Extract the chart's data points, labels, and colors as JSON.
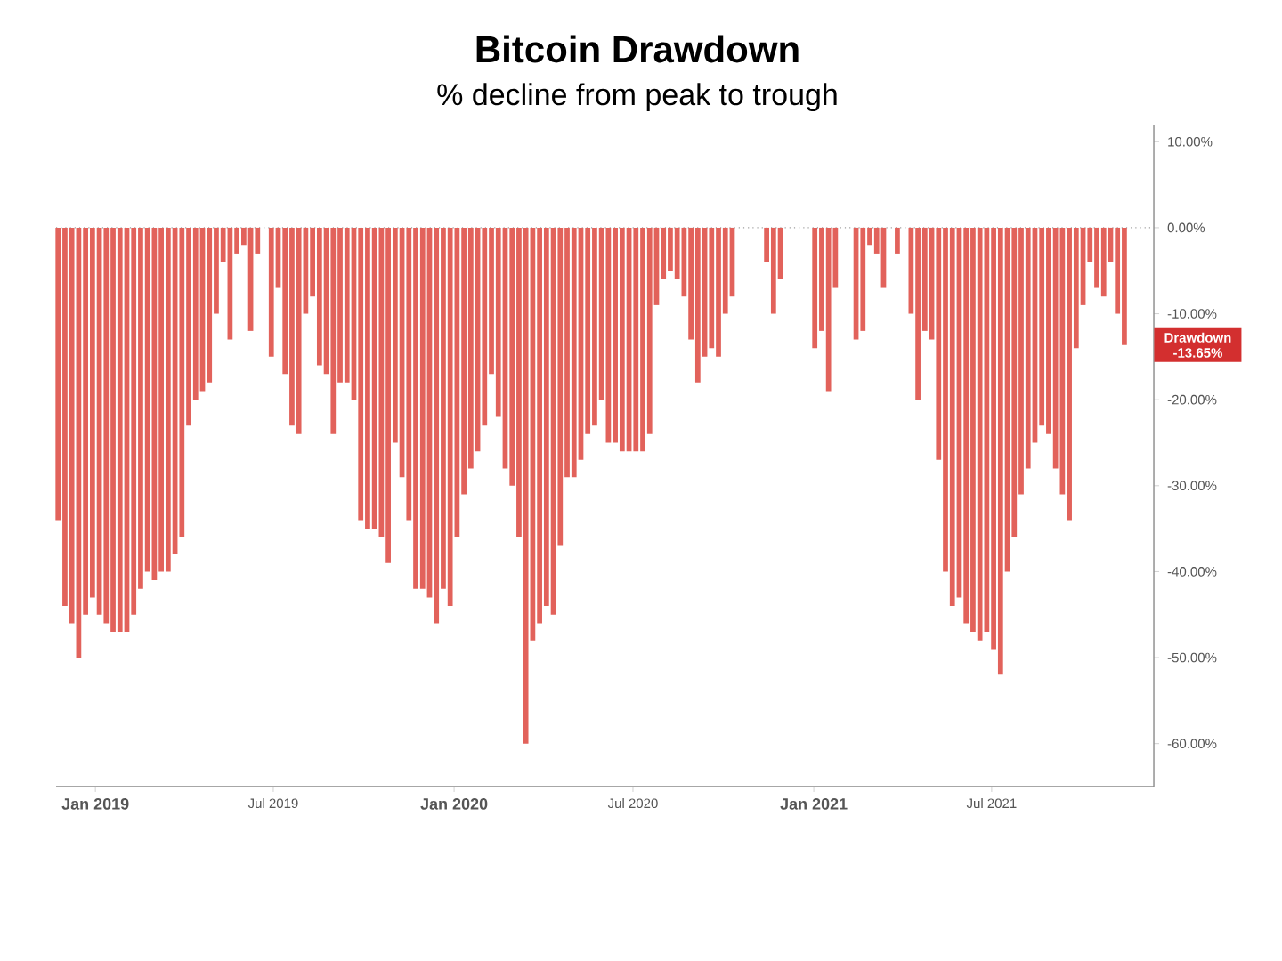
{
  "chart_data": {
    "type": "bar",
    "title": "Bitcoin Drawdown",
    "subtitle": "% decline from peak to trough",
    "x": [
      "2018-11-24",
      "2018-12-01",
      "2018-12-08",
      "2018-12-15",
      "2018-12-22",
      "2018-12-29",
      "2019-01-05",
      "2019-01-12",
      "2019-01-19",
      "2019-01-26",
      "2019-02-02",
      "2019-02-09",
      "2019-02-16",
      "2019-02-23",
      "2019-03-02",
      "2019-03-09",
      "2019-03-16",
      "2019-03-23",
      "2019-03-30",
      "2019-04-06",
      "2019-04-13",
      "2019-04-20",
      "2019-04-27",
      "2019-05-04",
      "2019-05-11",
      "2019-05-18",
      "2019-05-25",
      "2019-06-01",
      "2019-06-08",
      "2019-06-15",
      "2019-06-22",
      "2019-06-29",
      "2019-07-06",
      "2019-07-13",
      "2019-07-20",
      "2019-07-27",
      "2019-08-03",
      "2019-08-10",
      "2019-08-17",
      "2019-08-24",
      "2019-08-31",
      "2019-09-07",
      "2019-09-14",
      "2019-09-21",
      "2019-09-28",
      "2019-10-05",
      "2019-10-12",
      "2019-10-19",
      "2019-10-26",
      "2019-11-02",
      "2019-11-09",
      "2019-11-16",
      "2019-11-23",
      "2019-11-30",
      "2019-12-07",
      "2019-12-14",
      "2019-12-21",
      "2019-12-28",
      "2020-01-04",
      "2020-01-11",
      "2020-01-18",
      "2020-01-25",
      "2020-02-01",
      "2020-02-08",
      "2020-02-15",
      "2020-02-22",
      "2020-02-29",
      "2020-03-07",
      "2020-03-14",
      "2020-03-21",
      "2020-03-28",
      "2020-04-04",
      "2020-04-11",
      "2020-04-18",
      "2020-04-25",
      "2020-05-02",
      "2020-05-09",
      "2020-05-16",
      "2020-05-23",
      "2020-05-30",
      "2020-06-06",
      "2020-06-13",
      "2020-06-20",
      "2020-06-27",
      "2020-07-04",
      "2020-07-11",
      "2020-07-18",
      "2020-07-25",
      "2020-08-01",
      "2020-08-08",
      "2020-08-15",
      "2020-08-22",
      "2020-08-29",
      "2020-09-05",
      "2020-09-12",
      "2020-09-19",
      "2020-09-26",
      "2020-10-03",
      "2020-10-10",
      "2020-10-17",
      "2020-10-24",
      "2020-10-31",
      "2020-11-07",
      "2020-11-14",
      "2020-11-21",
      "2020-11-28",
      "2020-12-05",
      "2020-12-12",
      "2020-12-19",
      "2020-12-26",
      "2021-01-02",
      "2021-01-09",
      "2021-01-16",
      "2021-01-23",
      "2021-01-30",
      "2021-02-06",
      "2021-02-13",
      "2021-02-20",
      "2021-02-27",
      "2021-03-06",
      "2021-03-13",
      "2021-03-20",
      "2021-03-27",
      "2021-04-03",
      "2021-04-10",
      "2021-04-17",
      "2021-04-24",
      "2021-05-01",
      "2021-05-08",
      "2021-05-15",
      "2021-05-22",
      "2021-05-29",
      "2021-06-05",
      "2021-06-12",
      "2021-06-19",
      "2021-06-26",
      "2021-07-03",
      "2021-07-10",
      "2021-07-17",
      "2021-07-24",
      "2021-07-31",
      "2021-08-07",
      "2021-08-14",
      "2021-08-21",
      "2021-08-28",
      "2021-09-04",
      "2021-09-11",
      "2021-09-18",
      "2021-09-25",
      "2021-10-02",
      "2021-10-09",
      "2021-10-16",
      "2021-10-23",
      "2021-10-30",
      "2021-11-06",
      "2021-11-13"
    ],
    "values": [
      -34,
      -44,
      -46,
      -50,
      -45,
      -43,
      -45,
      -46,
      -47,
      -47,
      -47,
      -45,
      -42,
      -40,
      -41,
      -40,
      -40,
      -38,
      -36,
      -23,
      -20,
      -19,
      -18,
      -10,
      -4,
      -13,
      -3,
      -2,
      -12,
      -3,
      0,
      -15,
      -7,
      -17,
      -23,
      -24,
      -10,
      -8,
      -16,
      -17,
      -24,
      -18,
      -18,
      -20,
      -34,
      -35,
      -35,
      -36,
      -39,
      -25,
      -29,
      -34,
      -42,
      -42,
      -43,
      -46,
      -42,
      -44,
      -36,
      -31,
      -28,
      -26,
      -23,
      -17,
      -22,
      -28,
      -30,
      -36,
      -60,
      -48,
      -46,
      -44,
      -45,
      -37,
      -29,
      -29,
      -27,
      -24,
      -23,
      -20,
      -25,
      -25,
      -26,
      -26,
      -26,
      -26,
      -24,
      -9,
      -6,
      -5,
      -6,
      -8,
      -13,
      -18,
      -15,
      -14,
      -15,
      -10,
      -8,
      0,
      0,
      0,
      0,
      -4,
      -10,
      -6,
      0,
      0,
      0,
      0,
      -14,
      -12,
      -19,
      -7,
      0,
      0,
      -13,
      -12,
      -2,
      -3,
      -7,
      0,
      -3,
      0,
      -10,
      -20,
      -12,
      -13,
      -27,
      -40,
      -44,
      -43,
      -46,
      -47,
      -48,
      -47,
      -49,
      -52,
      -40,
      -36,
      -31,
      -28,
      -25,
      -23,
      -24,
      -28,
      -31,
      -34,
      -14,
      -9,
      -4,
      -7,
      -8,
      -4,
      -10,
      -13.65
    ],
    "color": "#e2625b",
    "xlim": [
      "2018-11-22",
      "2021-12-13"
    ],
    "xticks": [
      {
        "value": "2019-01-01",
        "label": "Jan 2019"
      },
      {
        "value": "2019-07-01",
        "label": "Jul 2019"
      },
      {
        "value": "2020-01-01",
        "label": "Jan 2020"
      },
      {
        "value": "2020-07-01",
        "label": "Jul 2020"
      },
      {
        "value": "2021-01-01",
        "label": "Jan 2021"
      },
      {
        "value": "2021-07-01",
        "label": "Jul 2021"
      }
    ],
    "ylim": [
      -65,
      12
    ],
    "yticks": [
      {
        "value": 10,
        "label": "10.00%"
      },
      {
        "value": 0,
        "label": "0.00%"
      },
      {
        "value": -10,
        "label": "-10.00%"
      },
      {
        "value": -20,
        "label": "-20.00%"
      },
      {
        "value": -30,
        "label": "-30.00%"
      },
      {
        "value": -40,
        "label": "-40.00%"
      },
      {
        "value": -50,
        "label": "-50.00%"
      },
      {
        "value": -60,
        "label": "-60.00%"
      }
    ],
    "ref_lines": [
      {
        "axis": "y",
        "value": 0,
        "color": "#9e9e9e",
        "line_style": "dotted"
      }
    ],
    "annotations": [
      "Drawdown -13.65%"
    ]
  }
}
